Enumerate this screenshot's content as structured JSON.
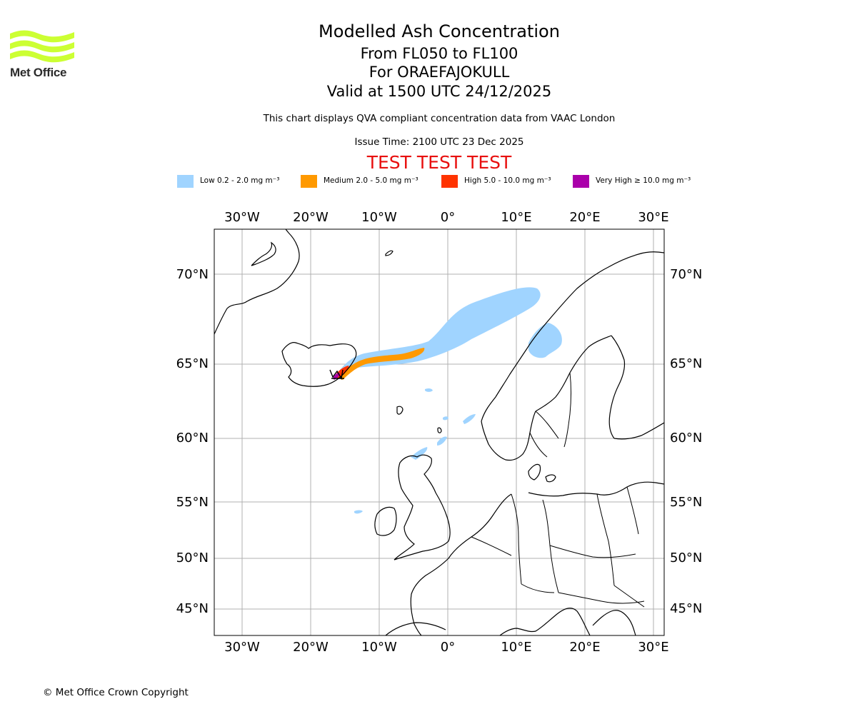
{
  "logo": {
    "text": "Met Office",
    "color": "#ccff33"
  },
  "titles": {
    "line1": "Modelled Ash Concentration",
    "line2": "From FL050 to FL100",
    "line3": "For ORAEFAJOKULL",
    "line4": "Valid at 1500 UTC 24/12/2025"
  },
  "subtitle": "This chart displays QVA compliant concentration data from VAAC London",
  "issue_time": "Issue Time: 2100 UTC 23 Dec 2025",
  "test_banner": "TEST TEST TEST",
  "legend": [
    {
      "label": "Low 0.2 - 2.0 mg m⁻³",
      "color": "#a0d4ff"
    },
    {
      "label": "Medium 2.0 - 5.0 mg m⁻³",
      "color": "#ff9900"
    },
    {
      "label": "High 5.0 - 10.0 mg m⁻³",
      "color": "#ff3300"
    },
    {
      "label": "Very High ≥ 10.0 mg m⁻³",
      "color": "#aa00aa"
    }
  ],
  "map": {
    "lon_ticks": [
      "30°W",
      "20°W",
      "10°W",
      "0°",
      "10°E",
      "20°E",
      "30°E"
    ],
    "lat_ticks": [
      "70°N",
      "65°N",
      "60°N",
      "55°N",
      "50°N",
      "45°N"
    ],
    "volcano": "ORAEFAJOKULL"
  },
  "copyright": "© Met Office Crown Copyright"
}
